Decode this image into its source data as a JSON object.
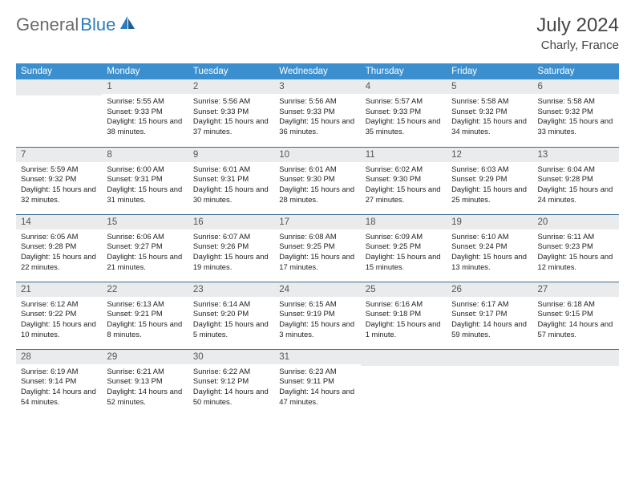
{
  "brand": {
    "part1": "General",
    "part2": "Blue"
  },
  "title": "July 2024",
  "location": "Charly, France",
  "colors": {
    "header_bg": "#3b8fcf",
    "header_text": "#ffffff",
    "daynum_bg": "#e9ebec",
    "week_border": "#3b6a8f",
    "body_text": "#222222",
    "logo_grey": "#6a6a6a",
    "logo_blue": "#2b7bbf"
  },
  "day_headers": [
    "Sunday",
    "Monday",
    "Tuesday",
    "Wednesday",
    "Thursday",
    "Friday",
    "Saturday"
  ],
  "start_offset": 1,
  "days": [
    {
      "n": 1,
      "sr": "5:55 AM",
      "ss": "9:33 PM",
      "dl": "15 hours and 38 minutes."
    },
    {
      "n": 2,
      "sr": "5:56 AM",
      "ss": "9:33 PM",
      "dl": "15 hours and 37 minutes."
    },
    {
      "n": 3,
      "sr": "5:56 AM",
      "ss": "9:33 PM",
      "dl": "15 hours and 36 minutes."
    },
    {
      "n": 4,
      "sr": "5:57 AM",
      "ss": "9:33 PM",
      "dl": "15 hours and 35 minutes."
    },
    {
      "n": 5,
      "sr": "5:58 AM",
      "ss": "9:32 PM",
      "dl": "15 hours and 34 minutes."
    },
    {
      "n": 6,
      "sr": "5:58 AM",
      "ss": "9:32 PM",
      "dl": "15 hours and 33 minutes."
    },
    {
      "n": 7,
      "sr": "5:59 AM",
      "ss": "9:32 PM",
      "dl": "15 hours and 32 minutes."
    },
    {
      "n": 8,
      "sr": "6:00 AM",
      "ss": "9:31 PM",
      "dl": "15 hours and 31 minutes."
    },
    {
      "n": 9,
      "sr": "6:01 AM",
      "ss": "9:31 PM",
      "dl": "15 hours and 30 minutes."
    },
    {
      "n": 10,
      "sr": "6:01 AM",
      "ss": "9:30 PM",
      "dl": "15 hours and 28 minutes."
    },
    {
      "n": 11,
      "sr": "6:02 AM",
      "ss": "9:30 PM",
      "dl": "15 hours and 27 minutes."
    },
    {
      "n": 12,
      "sr": "6:03 AM",
      "ss": "9:29 PM",
      "dl": "15 hours and 25 minutes."
    },
    {
      "n": 13,
      "sr": "6:04 AM",
      "ss": "9:28 PM",
      "dl": "15 hours and 24 minutes."
    },
    {
      "n": 14,
      "sr": "6:05 AM",
      "ss": "9:28 PM",
      "dl": "15 hours and 22 minutes."
    },
    {
      "n": 15,
      "sr": "6:06 AM",
      "ss": "9:27 PM",
      "dl": "15 hours and 21 minutes."
    },
    {
      "n": 16,
      "sr": "6:07 AM",
      "ss": "9:26 PM",
      "dl": "15 hours and 19 minutes."
    },
    {
      "n": 17,
      "sr": "6:08 AM",
      "ss": "9:25 PM",
      "dl": "15 hours and 17 minutes."
    },
    {
      "n": 18,
      "sr": "6:09 AM",
      "ss": "9:25 PM",
      "dl": "15 hours and 15 minutes."
    },
    {
      "n": 19,
      "sr": "6:10 AM",
      "ss": "9:24 PM",
      "dl": "15 hours and 13 minutes."
    },
    {
      "n": 20,
      "sr": "6:11 AM",
      "ss": "9:23 PM",
      "dl": "15 hours and 12 minutes."
    },
    {
      "n": 21,
      "sr": "6:12 AM",
      "ss": "9:22 PM",
      "dl": "15 hours and 10 minutes."
    },
    {
      "n": 22,
      "sr": "6:13 AM",
      "ss": "9:21 PM",
      "dl": "15 hours and 8 minutes."
    },
    {
      "n": 23,
      "sr": "6:14 AM",
      "ss": "9:20 PM",
      "dl": "15 hours and 5 minutes."
    },
    {
      "n": 24,
      "sr": "6:15 AM",
      "ss": "9:19 PM",
      "dl": "15 hours and 3 minutes."
    },
    {
      "n": 25,
      "sr": "6:16 AM",
      "ss": "9:18 PM",
      "dl": "15 hours and 1 minute."
    },
    {
      "n": 26,
      "sr": "6:17 AM",
      "ss": "9:17 PM",
      "dl": "14 hours and 59 minutes."
    },
    {
      "n": 27,
      "sr": "6:18 AM",
      "ss": "9:15 PM",
      "dl": "14 hours and 57 minutes."
    },
    {
      "n": 28,
      "sr": "6:19 AM",
      "ss": "9:14 PM",
      "dl": "14 hours and 54 minutes."
    },
    {
      "n": 29,
      "sr": "6:21 AM",
      "ss": "9:13 PM",
      "dl": "14 hours and 52 minutes."
    },
    {
      "n": 30,
      "sr": "6:22 AM",
      "ss": "9:12 PM",
      "dl": "14 hours and 50 minutes."
    },
    {
      "n": 31,
      "sr": "6:23 AM",
      "ss": "9:11 PM",
      "dl": "14 hours and 47 minutes."
    }
  ],
  "labels": {
    "sunrise": "Sunrise:",
    "sunset": "Sunset:",
    "daylight": "Daylight:"
  }
}
